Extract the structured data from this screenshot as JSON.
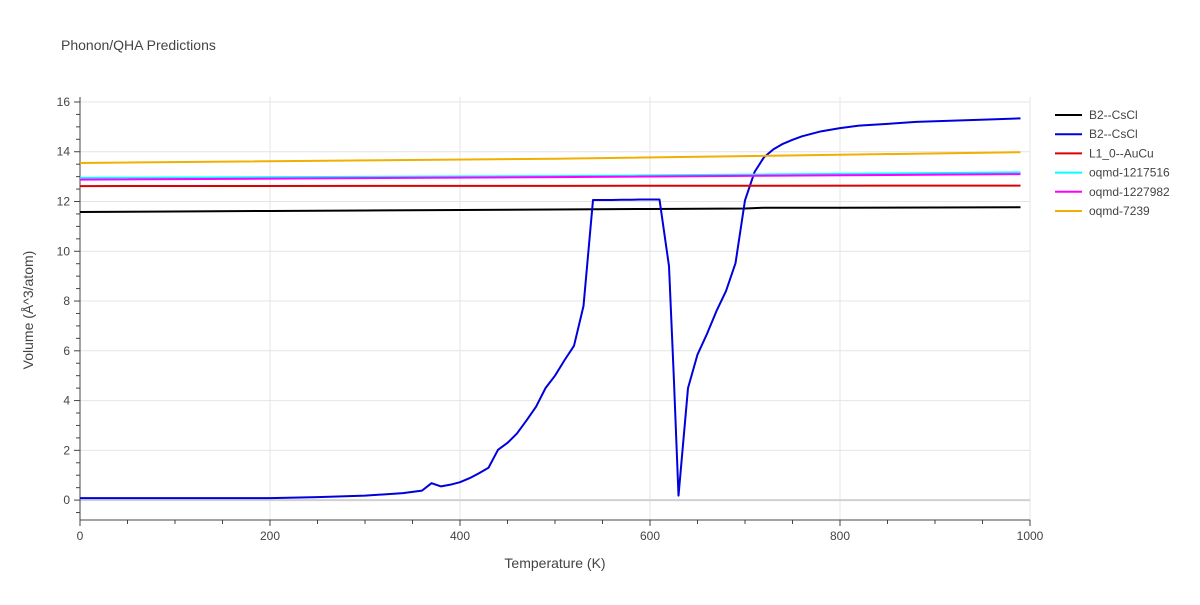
{
  "chart_data": {
    "type": "line",
    "title": "Phonon/QHA Predictions",
    "xlabel": "Temperature (K)",
    "ylabel": "Volume (Å^3/atom)",
    "xlim": [
      0,
      1000
    ],
    "ylim": [
      -0.8,
      16.2
    ],
    "x_ticks": [
      0,
      200,
      400,
      600,
      800,
      1000
    ],
    "y_ticks": [
      0,
      2,
      4,
      6,
      8,
      10,
      12,
      14,
      16
    ],
    "grid": true,
    "legend_position": "top-right",
    "series": [
      {
        "name": "B2--CsCl",
        "color": "#000000",
        "x": [
          0,
          100,
          200,
          300,
          400,
          500,
          600,
          700,
          720,
          800,
          900,
          990
        ],
        "y": [
          11.58,
          11.6,
          11.62,
          11.64,
          11.66,
          11.68,
          11.7,
          11.72,
          11.75,
          11.75,
          11.76,
          11.77
        ]
      },
      {
        "name": "B2--CsCl",
        "color": "#0000dd",
        "x": [
          0,
          100,
          200,
          250,
          300,
          340,
          360,
          370,
          380,
          390,
          400,
          410,
          420,
          430,
          440,
          450,
          460,
          470,
          480,
          490,
          500,
          510,
          520,
          530,
          540,
          550,
          560,
          570,
          580,
          590,
          600,
          610,
          620,
          625,
          630,
          640,
          650,
          660,
          670,
          680,
          690,
          700,
          710,
          720,
          730,
          740,
          750,
          760,
          780,
          800,
          820,
          850,
          880,
          920,
          960,
          990
        ],
        "y": [
          0.08,
          0.08,
          0.08,
          0.12,
          0.18,
          0.28,
          0.38,
          0.68,
          0.55,
          0.62,
          0.72,
          0.88,
          1.08,
          1.3,
          2.02,
          2.3,
          2.68,
          3.2,
          3.75,
          4.5,
          5.0,
          5.62,
          6.2,
          7.8,
          12.06,
          12.06,
          12.06,
          12.07,
          12.07,
          12.08,
          12.08,
          12.08,
          9.4,
          5.0,
          0.18,
          4.5,
          5.85,
          6.68,
          7.6,
          8.4,
          9.52,
          12.05,
          13.18,
          13.78,
          14.1,
          14.32,
          14.48,
          14.62,
          14.82,
          14.95,
          15.05,
          15.12,
          15.2,
          15.25,
          15.3,
          15.34
        ]
      },
      {
        "name": "L1_0--AuCu",
        "color": "#dd0000",
        "x": [
          0,
          500,
          990
        ],
        "y": [
          12.62,
          12.63,
          12.64
        ]
      },
      {
        "name": "oqmd-1217516",
        "color": "#00ffff",
        "x": [
          0,
          500,
          990
        ],
        "y": [
          12.95,
          13.02,
          13.17
        ]
      },
      {
        "name": "oqmd-1227982",
        "color": "#ff00ff",
        "x": [
          0,
          500,
          990
        ],
        "y": [
          12.88,
          12.98,
          13.1
        ]
      },
      {
        "name": "oqmd-7239",
        "color": "#f0b000",
        "x": [
          0,
          500,
          990
        ],
        "y": [
          13.55,
          13.72,
          13.98
        ]
      }
    ]
  }
}
